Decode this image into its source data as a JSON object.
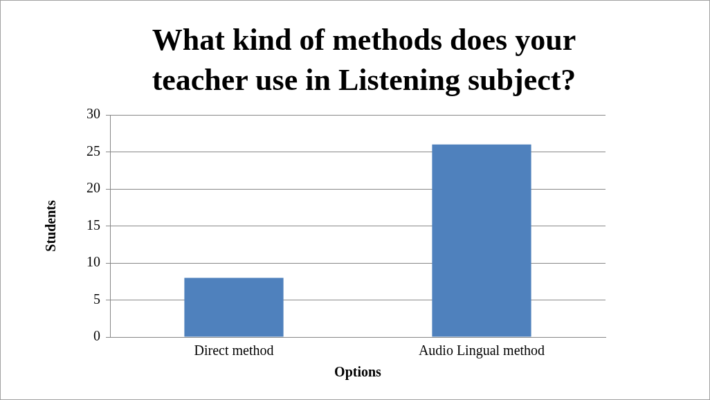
{
  "chart_data": {
    "type": "bar",
    "title": "What kind of methods does your teacher use in Listening subject?",
    "xlabel": "Options",
    "ylabel": "Students",
    "categories": [
      "Direct method",
      "Audio Lingual method"
    ],
    "values": [
      8,
      26
    ],
    "color": "#4f81bd",
    "ylim": [
      0,
      30
    ],
    "yticks": [
      0,
      5,
      10,
      15,
      20,
      25,
      30
    ],
    "grid": "y",
    "legend": false
  }
}
